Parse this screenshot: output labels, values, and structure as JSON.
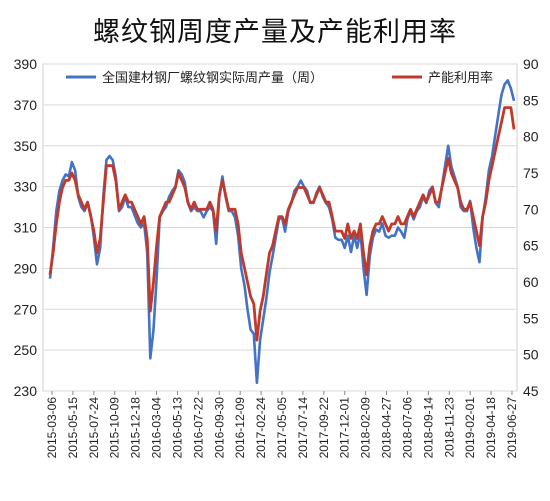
{
  "chart_data": {
    "type": "line",
    "title": "螺纹钢周度产量及产能利用率",
    "left_axis": {
      "ylim": [
        230,
        390
      ],
      "ticks": [
        230,
        250,
        270,
        290,
        310,
        330,
        350,
        370,
        390
      ]
    },
    "right_axis": {
      "ylim": [
        45,
        90
      ],
      "ticks": [
        45,
        50,
        55,
        60,
        65,
        70,
        75,
        80,
        85,
        90
      ]
    },
    "x_tick_labels": [
      "2015-03-06",
      "2015-05-15",
      "2015-07-24",
      "2015-10-09",
      "2015-12-18",
      "2016-03-04",
      "2016-05-13",
      "2016-07-22",
      "2016-09-30",
      "2016-12-09",
      "2017-02-24",
      "2017-05-05",
      "2017-07-14",
      "2017-09-22",
      "2017-12-01",
      "2018-02-09",
      "2018-04-27",
      "2018-07-06",
      "2018-09-14",
      "2018-11-23",
      "2019-02-01",
      "2019-04-18",
      "2019-06-27"
    ],
    "grid": true,
    "legend_position": "top",
    "series": [
      {
        "name": "全国建材钢厂螺纹钢实际周产量（周）",
        "axis": "left",
        "color": "#4472C4",
        "values": [
          285,
          300,
          318,
          328,
          333,
          336,
          335,
          342,
          338,
          325,
          320,
          318,
          322,
          316,
          305,
          292,
          300,
          325,
          343,
          345,
          343,
          335,
          318,
          320,
          325,
          320,
          320,
          316,
          312,
          310,
          312,
          298,
          246,
          260,
          285,
          315,
          318,
          320,
          325,
          328,
          330,
          338,
          336,
          332,
          322,
          318,
          320,
          318,
          318,
          315,
          318,
          320,
          318,
          302,
          325,
          335,
          325,
          318,
          318,
          315,
          306,
          290,
          282,
          270,
          260,
          258,
          234,
          255,
          265,
          275,
          288,
          296,
          305,
          314,
          315,
          308,
          318,
          322,
          328,
          330,
          333,
          330,
          328,
          322,
          322,
          327,
          330,
          325,
          322,
          320,
          314,
          305,
          304,
          304,
          300,
          306,
          298,
          306,
          300,
          308,
          290,
          277,
          296,
          305,
          309,
          308,
          312,
          306,
          305,
          306,
          306,
          310,
          308,
          305,
          314,
          318,
          314,
          318,
          320,
          325,
          322,
          328,
          330,
          322,
          320,
          330,
          340,
          350,
          340,
          335,
          330,
          320,
          318,
          318,
          323,
          310,
          300,
          293,
          315,
          325,
          338,
          345,
          355,
          365,
          375,
          380,
          382,
          378,
          372
        ]
      },
      {
        "name": "产能利用率",
        "axis": "right",
        "color": "#C0392B",
        "values": [
          61,
          64,
          68,
          71,
          73,
          74,
          74,
          75,
          74,
          72,
          71,
          70,
          71,
          69,
          67,
          64,
          66,
          71,
          76,
          76,
          76,
          74,
          70,
          71,
          72,
          71,
          71,
          70,
          69,
          68,
          69,
          66,
          56,
          60,
          65,
          69,
          70,
          71,
          71,
          72,
          73,
          75,
          74,
          73,
          71,
          70,
          71,
          70,
          70,
          70,
          70,
          71,
          70,
          67,
          72,
          74,
          72,
          70,
          70,
          70,
          68,
          64,
          62,
          60,
          58,
          57,
          52,
          56,
          58,
          61,
          64,
          65,
          67,
          69,
          69,
          68,
          70,
          71,
          72,
          73,
          73,
          73,
          72,
          71,
          71,
          72,
          73,
          72,
          71,
          71,
          69,
          67,
          67,
          67,
          66,
          68,
          66,
          67,
          66,
          68,
          64,
          61,
          65,
          67,
          68,
          68,
          69,
          68,
          67,
          68,
          68,
          69,
          68,
          68,
          69,
          70,
          69,
          70,
          71,
          72,
          71,
          72,
          73,
          71,
          71,
          73,
          75,
          77,
          75,
          74,
          73,
          71,
          70,
          70,
          71,
          69,
          67,
          65,
          69,
          71,
          74,
          76,
          78,
          80,
          82,
          84,
          84,
          84,
          81
        ]
      }
    ]
  }
}
